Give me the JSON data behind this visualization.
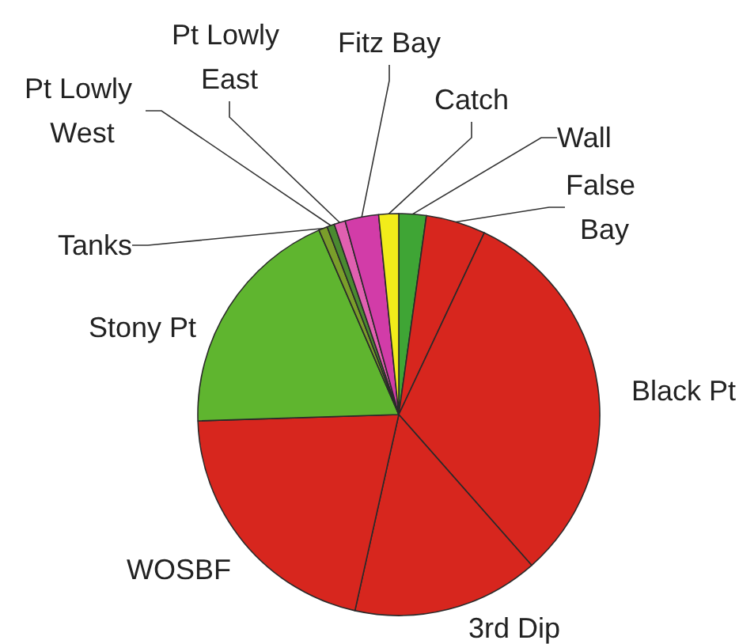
{
  "chart_data": {
    "type": "pie",
    "categories": [
      "Wall",
      "False Bay",
      "Black Pt",
      "3rd Dip",
      "WOSBF",
      "Stony Pt",
      "Tanks",
      "Pt Lowly West",
      "Pt Lowly East",
      "Fitz Bay",
      "Catch"
    ],
    "values": [
      2.2,
      4.8,
      31.5,
      15,
      21,
      19,
      0.7,
      0.6,
      0.9,
      2.7,
      1.6
    ],
    "colors": [
      "#3fa535",
      "#d7261e",
      "#d7261e",
      "#d7261e",
      "#d7261e",
      "#5fb52f",
      "#7a9e2a",
      "#4a8a30",
      "#e060b0",
      "#d23ca8",
      "#f2ec1a"
    ]
  }
}
